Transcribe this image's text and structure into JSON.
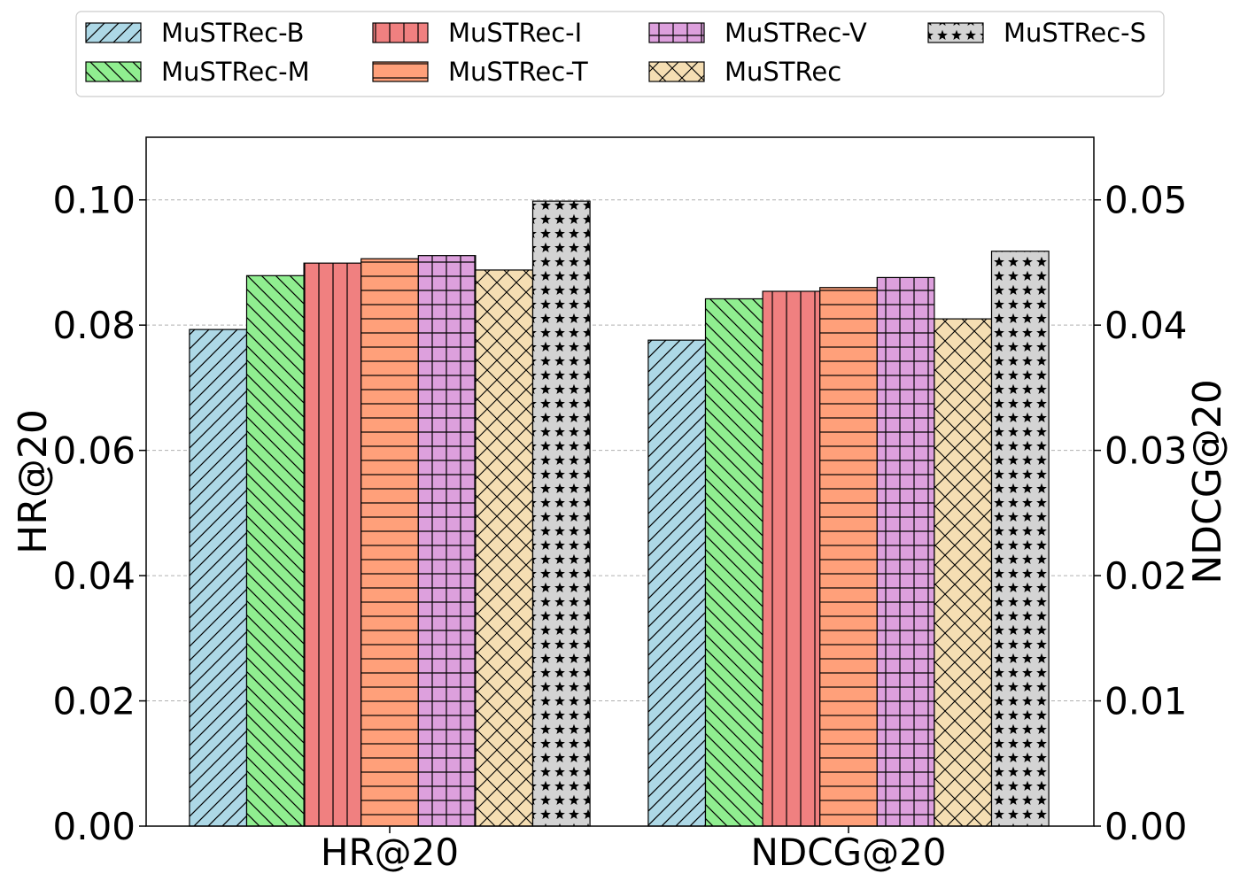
{
  "chart_data": {
    "type": "bar",
    "categories": [
      "HR@20",
      "NDCG@20"
    ],
    "series": [
      {
        "name": "MuSTRec-B",
        "values": [
          0.0793,
          0.0388
        ],
        "color": "#add8e6",
        "pattern": "diag-right"
      },
      {
        "name": "MuSTRec-M",
        "values": [
          0.0879,
          0.0421
        ],
        "color": "#90ee90",
        "pattern": "diag-left"
      },
      {
        "name": "MuSTRec-I",
        "values": [
          0.0899,
          0.0427
        ],
        "color": "#f08080",
        "pattern": "vertical"
      },
      {
        "name": "MuSTRec-T",
        "values": [
          0.0906,
          0.043
        ],
        "color": "#ffa07a",
        "pattern": "horizontal"
      },
      {
        "name": "MuSTRec-V",
        "values": [
          0.0911,
          0.0438
        ],
        "color": "#dda0dd",
        "pattern": "grid"
      },
      {
        "name": "MuSTRec",
        "values": [
          0.0888,
          0.0405
        ],
        "color": "#f5deb3",
        "pattern": "cross"
      },
      {
        "name": "MuSTRec-S",
        "values": [
          0.0998,
          0.0459
        ],
        "color": "#d3d3d3",
        "pattern": "stars"
      }
    ],
    "ylabel_left": "HR@20",
    "ylabel_right": "NDCG@20",
    "ylim_left": [
      0,
      0.11
    ],
    "ylim_right": [
      0,
      0.055
    ],
    "yticks_left": [
      "0.00",
      "0.02",
      "0.04",
      "0.06",
      "0.08",
      "0.10"
    ],
    "yticks_right": [
      "0.00",
      "0.01",
      "0.02",
      "0.03",
      "0.04",
      "0.05"
    ],
    "grid": true,
    "legend_position": "top-center",
    "legend_columns": 4
  }
}
